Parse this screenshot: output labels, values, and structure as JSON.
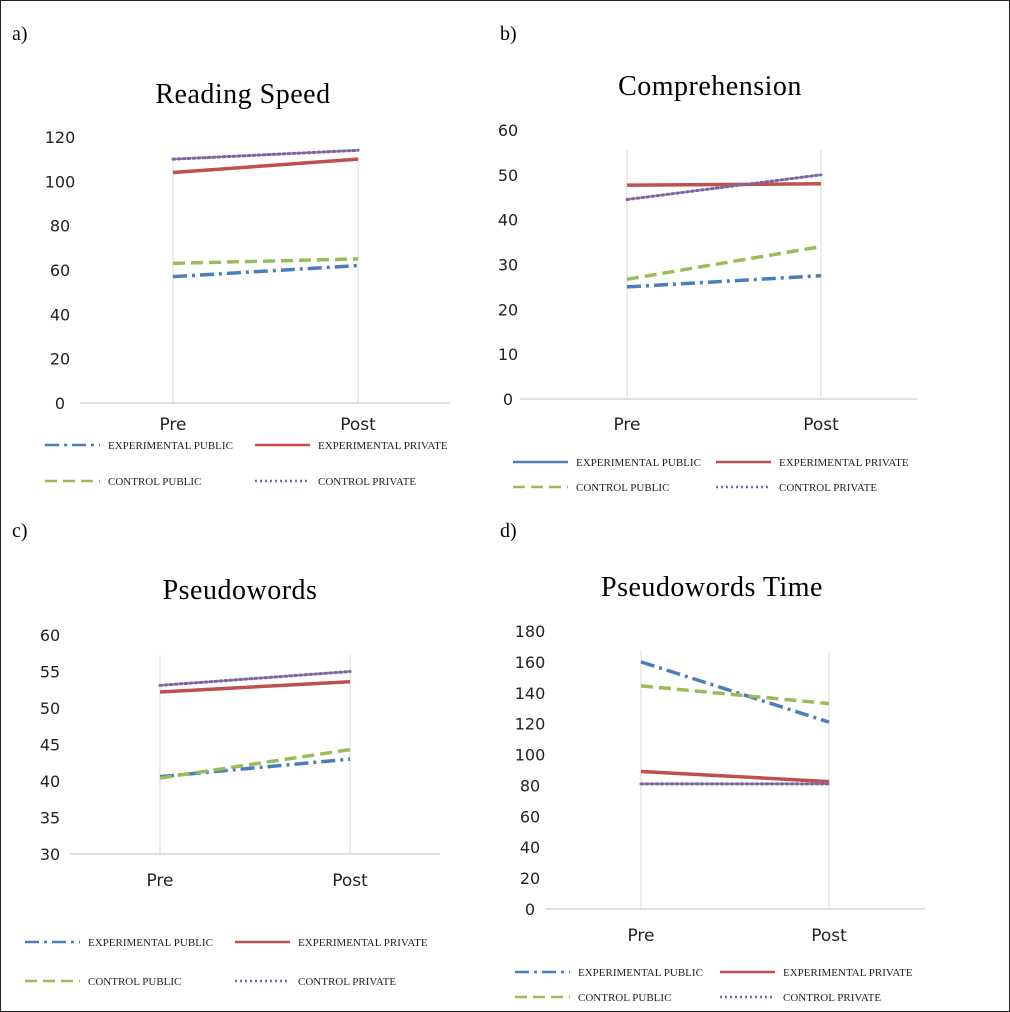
{
  "panel_letters": [
    "a)",
    "b)",
    "c)",
    "d)"
  ],
  "colors": {
    "experimental_public": "#4a7ebb",
    "experimental_private": "#c0504d",
    "control_public": "#9bbb59",
    "control_private": "#8064a2",
    "axis": "#bfbfbf"
  },
  "chart_data": [
    {
      "type": "line",
      "title": "Reading Speed",
      "categories": [
        "Pre",
        "Post"
      ],
      "ylim": [
        0,
        120
      ],
      "yticks": [
        "0",
        "20",
        "40",
        "60",
        "80",
        "100",
        "120"
      ],
      "grid": false,
      "legend_position": "bottom",
      "series": [
        {
          "name": "EXPERIMENTAL PUBLIC",
          "values": [
            57,
            62
          ],
          "dash": "dashdot",
          "color": "#4a7ebb"
        },
        {
          "name": "EXPERIMENTAL PRIVATE",
          "values": [
            104,
            110
          ],
          "dash": "solid",
          "color": "#c0504d"
        },
        {
          "name": "CONTROL PUBLIC",
          "values": [
            63,
            65
          ],
          "dash": "dash",
          "color": "#9bbb59"
        },
        {
          "name": "CONTROL PRIVATE",
          "values": [
            110,
            114
          ],
          "dash": "dot",
          "color": "#8064a2"
        }
      ]
    },
    {
      "type": "line",
      "title": "Comprehension",
      "categories": [
        "Pre",
        "Post"
      ],
      "ylim": [
        0,
        60
      ],
      "yticks": [
        "0",
        "10",
        "20",
        "30",
        "40",
        "50",
        "60"
      ],
      "grid": false,
      "legend_position": "bottom",
      "series": [
        {
          "name": "EXPERIMENTAL PUBLIC",
          "values": [
            25,
            27.5
          ],
          "dash": "dashdot",
          "color": "#4a7ebb",
          "legend_dash": "solid"
        },
        {
          "name": "EXPERIMENTAL PRIVATE",
          "values": [
            47.7,
            48
          ],
          "dash": "solid",
          "color": "#c0504d"
        },
        {
          "name": "CONTROL PUBLIC",
          "values": [
            26.7,
            34
          ],
          "dash": "dash",
          "color": "#9bbb59"
        },
        {
          "name": "CONTROL PRIVATE",
          "values": [
            44.5,
            50
          ],
          "dash": "dot",
          "color": "#8064a2"
        }
      ]
    },
    {
      "type": "line",
      "title": "Pseudowords",
      "categories": [
        "Pre",
        "Post"
      ],
      "ylim": [
        30,
        60
      ],
      "yticks": [
        "30",
        "35",
        "40",
        "45",
        "50",
        "55",
        "60"
      ],
      "grid": false,
      "legend_position": "bottom",
      "series": [
        {
          "name": "EXPERIMENTAL PUBLIC",
          "values": [
            40.6,
            43
          ],
          "dash": "dashdot",
          "color": "#4a7ebb"
        },
        {
          "name": "EXPERIMENTAL PRIVATE",
          "values": [
            52.2,
            53.6
          ],
          "dash": "solid",
          "color": "#c0504d"
        },
        {
          "name": "CONTROL PUBLIC",
          "values": [
            40.4,
            44.3
          ],
          "dash": "dash",
          "color": "#9bbb59"
        },
        {
          "name": "CONTROL PRIVATE",
          "values": [
            53.1,
            55
          ],
          "dash": "dot",
          "color": "#8064a2"
        }
      ]
    },
    {
      "type": "line",
      "title": "Pseudowords Time",
      "categories": [
        "Pre",
        "Post"
      ],
      "ylim": [
        0,
        180
      ],
      "yticks": [
        "0",
        "20",
        "40",
        "60",
        "80",
        "100",
        "120",
        "140",
        "160",
        "180"
      ],
      "grid": false,
      "legend_position": "bottom",
      "series": [
        {
          "name": "EXPERIMENTAL PUBLIC",
          "values": [
            160,
            121
          ],
          "dash": "dashdot",
          "color": "#4a7ebb"
        },
        {
          "name": "EXPERIMENTAL PRIVATE",
          "values": [
            89,
            82.5
          ],
          "dash": "solid",
          "color": "#c0504d"
        },
        {
          "name": "CONTROL PUBLIC",
          "values": [
            144.5,
            133
          ],
          "dash": "dash",
          "color": "#9bbb59"
        },
        {
          "name": "CONTROL PRIVATE",
          "values": [
            81,
            81
          ],
          "dash": "dot",
          "color": "#8064a2"
        }
      ]
    }
  ]
}
